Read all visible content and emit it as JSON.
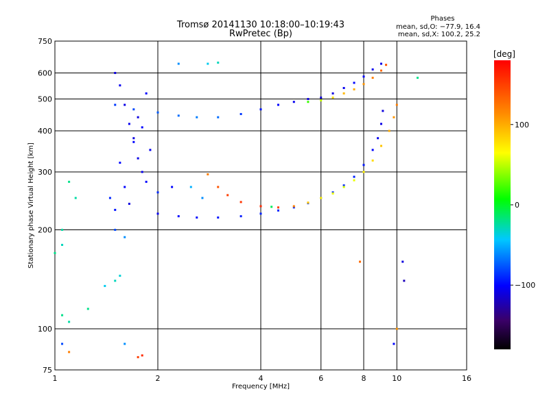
{
  "chart_data": {
    "type": "scatter",
    "title": "Tromsø 20141130 10:18:00–10:19:43",
    "subtitle": "RwPretec (Bp)",
    "xlabel": "Frequency [MHz]",
    "ylabel": "Stationary phase Virtual Height [km]",
    "xscale": "log2",
    "yscale": "log",
    "xlim": [
      1,
      16
    ],
    "ylim": [
      75,
      750
    ],
    "xticks": [
      "1",
      "2",
      "4",
      "6",
      "8",
      "10",
      "16"
    ],
    "xtick_values": [
      1,
      2,
      4,
      6,
      8,
      10,
      16
    ],
    "yticks": [
      "75",
      "100",
      "200",
      "300",
      "400",
      "500",
      "600",
      "750"
    ],
    "ytick_values": [
      75,
      100,
      200,
      300,
      400,
      500,
      600,
      750
    ],
    "grid": true,
    "stats_header": "Phases",
    "stats_o": "mean, sd,O: −77.9, 16.4",
    "stats_x": "mean, sd,X: 100.2, 25.2",
    "colorbar": {
      "label": "[deg]",
      "range": [
        -180,
        180
      ],
      "ticks": [
        "100",
        "0",
        "−100"
      ],
      "tick_values": [
        100,
        0,
        -100
      ]
    },
    "series": [
      {
        "points": [
          [
            2.0,
            224,
            -105
          ],
          [
            2.3,
            220,
            -100
          ],
          [
            2.6,
            218,
            -98
          ],
          [
            3.0,
            218,
            -95
          ],
          [
            3.5,
            220,
            -93
          ],
          [
            4.0,
            224,
            -92
          ],
          [
            4.5,
            229,
            -90
          ],
          [
            5.0,
            234,
            -88
          ],
          [
            5.5,
            241,
            -85
          ],
          [
            6.0,
            250,
            -86
          ],
          [
            6.5,
            260,
            -88
          ],
          [
            7.0,
            273,
            -90
          ],
          [
            7.5,
            290,
            -92
          ],
          [
            8.0,
            315,
            -95
          ],
          [
            8.5,
            350,
            -100
          ],
          [
            8.8,
            380,
            -105
          ],
          [
            9.0,
            420,
            -108
          ],
          [
            9.1,
            460,
            -110
          ]
        ]
      },
      {
        "points": [
          [
            2.8,
            295,
            120
          ],
          [
            3.0,
            270,
            140
          ],
          [
            3.2,
            255,
            150
          ],
          [
            3.5,
            243,
            155
          ],
          [
            4.0,
            236,
            160
          ],
          [
            4.5,
            234,
            150
          ],
          [
            5.0,
            236,
            120
          ],
          [
            5.5,
            242,
            90
          ],
          [
            6.0,
            250,
            70
          ],
          [
            6.5,
            258,
            60
          ],
          [
            7.0,
            270,
            55
          ],
          [
            7.5,
            283,
            60
          ],
          [
            8.0,
            300,
            70
          ],
          [
            8.5,
            325,
            80
          ],
          [
            9.0,
            360,
            90
          ],
          [
            9.5,
            400,
            100
          ],
          [
            9.8,
            440,
            110
          ],
          [
            10.0,
            480,
            120
          ]
        ]
      },
      {
        "points": [
          [
            1.5,
            480,
            -85
          ],
          [
            1.7,
            465,
            -80
          ],
          [
            2.0,
            455,
            -75
          ],
          [
            2.3,
            445,
            -70
          ],
          [
            2.6,
            440,
            -65
          ],
          [
            3.0,
            440,
            -70
          ],
          [
            3.5,
            450,
            -85
          ],
          [
            4.0,
            465,
            -95
          ],
          [
            4.5,
            480,
            -100
          ],
          [
            5.0,
            490,
            -105
          ],
          [
            5.5,
            500,
            -110
          ],
          [
            6.0,
            505,
            -112
          ],
          [
            6.5,
            520,
            -110
          ],
          [
            7.0,
            540,
            -105
          ],
          [
            7.5,
            560,
            -100
          ],
          [
            8.0,
            585,
            -100
          ],
          [
            8.5,
            615,
            -105
          ],
          [
            9.0,
            640,
            -108
          ]
        ]
      },
      {
        "points": [
          [
            5.5,
            490,
            20
          ],
          [
            6.0,
            495,
            50
          ],
          [
            6.5,
            505,
            80
          ],
          [
            7.0,
            520,
            95
          ],
          [
            7.5,
            535,
            100
          ],
          [
            8.0,
            555,
            110
          ],
          [
            8.5,
            580,
            120
          ],
          [
            9.0,
            610,
            130
          ],
          [
            9.3,
            635,
            140
          ]
        ]
      },
      {
        "points": [
          [
            1.5,
            600,
            -110
          ],
          [
            1.55,
            550,
            -105
          ],
          [
            1.6,
            480,
            -108
          ],
          [
            1.65,
            420,
            -105
          ],
          [
            1.7,
            370,
            -100
          ],
          [
            1.75,
            330,
            -108
          ],
          [
            1.8,
            300,
            -105
          ],
          [
            1.6,
            270,
            -100
          ],
          [
            1.65,
            240,
            -110
          ],
          [
            1.5,
            230,
            -95
          ],
          [
            1.7,
            380,
            -110
          ],
          [
            1.8,
            410,
            -100
          ],
          [
            1.9,
            350,
            -105
          ],
          [
            1.55,
            320,
            -98
          ],
          [
            1.85,
            280,
            -100
          ],
          [
            2.0,
            260,
            -90
          ],
          [
            2.2,
            270,
            -100
          ],
          [
            1.45,
            250,
            -90
          ],
          [
            1.5,
            200,
            -80
          ],
          [
            1.6,
            190,
            -60
          ],
          [
            1.75,
            440,
            -110
          ],
          [
            1.85,
            520,
            -100
          ]
        ]
      },
      {
        "points": [
          [
            1.0,
            170,
            -20
          ],
          [
            1.05,
            180,
            -30
          ],
          [
            1.05,
            200,
            -25
          ],
          [
            1.1,
            280,
            -20
          ],
          [
            1.15,
            250,
            -25
          ],
          [
            1.05,
            110,
            -20
          ],
          [
            1.1,
            105,
            -25
          ],
          [
            1.25,
            115,
            -20
          ],
          [
            1.4,
            135,
            -40
          ],
          [
            1.5,
            140,
            -30
          ],
          [
            1.55,
            145,
            -35
          ],
          [
            2.5,
            270,
            -50
          ],
          [
            2.7,
            250,
            -60
          ],
          [
            4.3,
            235,
            -10
          ],
          [
            1.6,
            90,
            -60
          ],
          [
            1.05,
            90,
            -80
          ],
          [
            1.75,
            82,
            150
          ],
          [
            1.8,
            83,
            160
          ],
          [
            1.1,
            85,
            120
          ],
          [
            10.4,
            160,
            -110
          ],
          [
            10.5,
            140,
            -120
          ],
          [
            9.8,
            90,
            -100
          ],
          [
            7.8,
            160,
            130
          ],
          [
            10.0,
            100,
            110
          ],
          [
            2.3,
            640,
            -60
          ],
          [
            2.8,
            640,
            -40
          ],
          [
            3.0,
            645,
            -30
          ],
          [
            11.5,
            580,
            -20
          ]
        ]
      }
    ]
  }
}
